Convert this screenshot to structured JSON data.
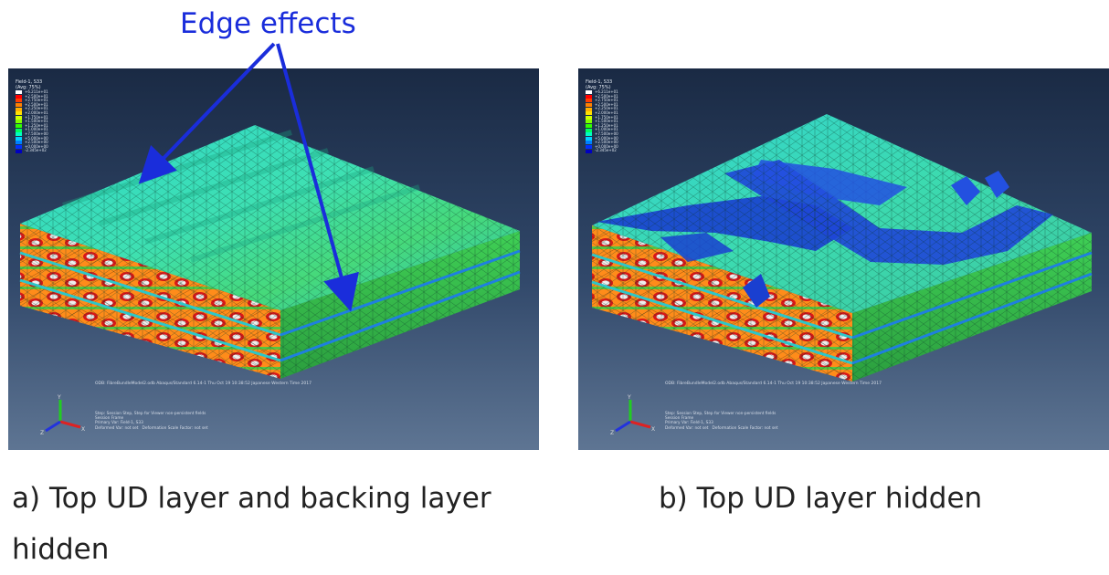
{
  "annotation": {
    "text": "Edge effects",
    "color": "#1a2ddb"
  },
  "panels": [
    {
      "id": "a",
      "caption": "a) Top UD layer and backing layer hidden",
      "legend_title": "Field-1, S33\n(Avg: 75%)",
      "legend_values": [
        "+6.211e+01",
        "+2.500e+01",
        "+2.750e+01",
        "+2.500e+01",
        "+2.250e+01",
        "+2.000e+01",
        "+1.750e+01",
        "+1.500e+01",
        "+1.250e+01",
        "+1.000e+01",
        "+7.500e+00",
        "+5.000e+00",
        "+2.500e+00",
        "+0.000e+00",
        "-2.345e+02"
      ],
      "odb_line": "ODB: FibreBundleModel2.odb    Abaqus/Standard 6.14-1    Thu Oct 19 10:38:52 Japanese Western Time 2017",
      "info_lines": [
        "Step: Session Step, Step for Viewer non-persistent fields",
        "Session Frame",
        "Primary Var: Field-1, S33",
        "Deformed Var: not set   Deformation Scale Factor: not set"
      ]
    },
    {
      "id": "b",
      "caption": "b) Top UD layer hidden",
      "legend_title": "Field-1, S33\n(Avg: 75%)",
      "legend_values": [
        "+6.211e+01",
        "+2.500e+01",
        "+2.750e+01",
        "+2.500e+01",
        "+2.250e+01",
        "+2.000e+01",
        "+1.750e+01",
        "+1.500e+01",
        "+1.250e+01",
        "+1.000e+01",
        "+7.500e+00",
        "+5.000e+00",
        "+2.500e+00",
        "+0.000e+00",
        "-2.345e+02"
      ],
      "odb_line": "ODB: FibreBundleModel2.odb    Abaqus/Standard 6.14-1    Thu Oct 19 10:38:52 Japanese Western Time 2017",
      "info_lines": [
        "Step: Session Step, Step for Viewer non-persistent fields",
        "Session Frame",
        "Primary Var: Field-1, S33",
        "Deformed Var: not set   Deformation Scale Factor: not set"
      ]
    }
  ],
  "legend_colors": [
    "#ffffff",
    "#ff0000",
    "#ff4000",
    "#ff8000",
    "#ffb000",
    "#ffe000",
    "#d0ff00",
    "#80ff00",
    "#30ff00",
    "#00ff60",
    "#00ffc0",
    "#00d0ff",
    "#0080ff",
    "#0030ff",
    "#0000c0"
  ],
  "triad_labels": {
    "x": "X",
    "y": "Y",
    "z": "Z"
  }
}
